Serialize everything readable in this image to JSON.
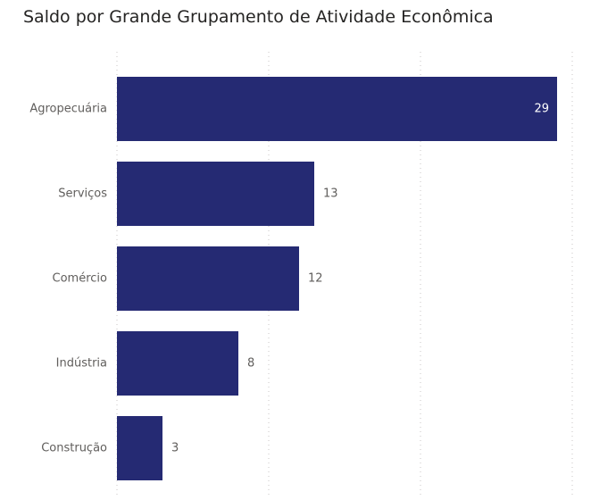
{
  "colors": {
    "bar": "#252a73",
    "value_outside": "#605e5c",
    "value_inside": "#ffffff",
    "grid": "#c8c6c4"
  },
  "chart_data": {
    "type": "bar",
    "orientation": "horizontal",
    "title": "Saldo por Grande Grupamento de Atividade Econômica",
    "categories": [
      "Agropecuária",
      "Serviços",
      "Comércio",
      "Indústria",
      "Construção"
    ],
    "values": [
      29,
      13,
      12,
      8,
      3
    ],
    "data_labels": [
      "29",
      "13",
      "12",
      "8",
      "3"
    ],
    "xlabel": "",
    "ylabel": "",
    "xlim": [
      0,
      30
    ],
    "grid": "vertical dotted",
    "legend": "none"
  }
}
